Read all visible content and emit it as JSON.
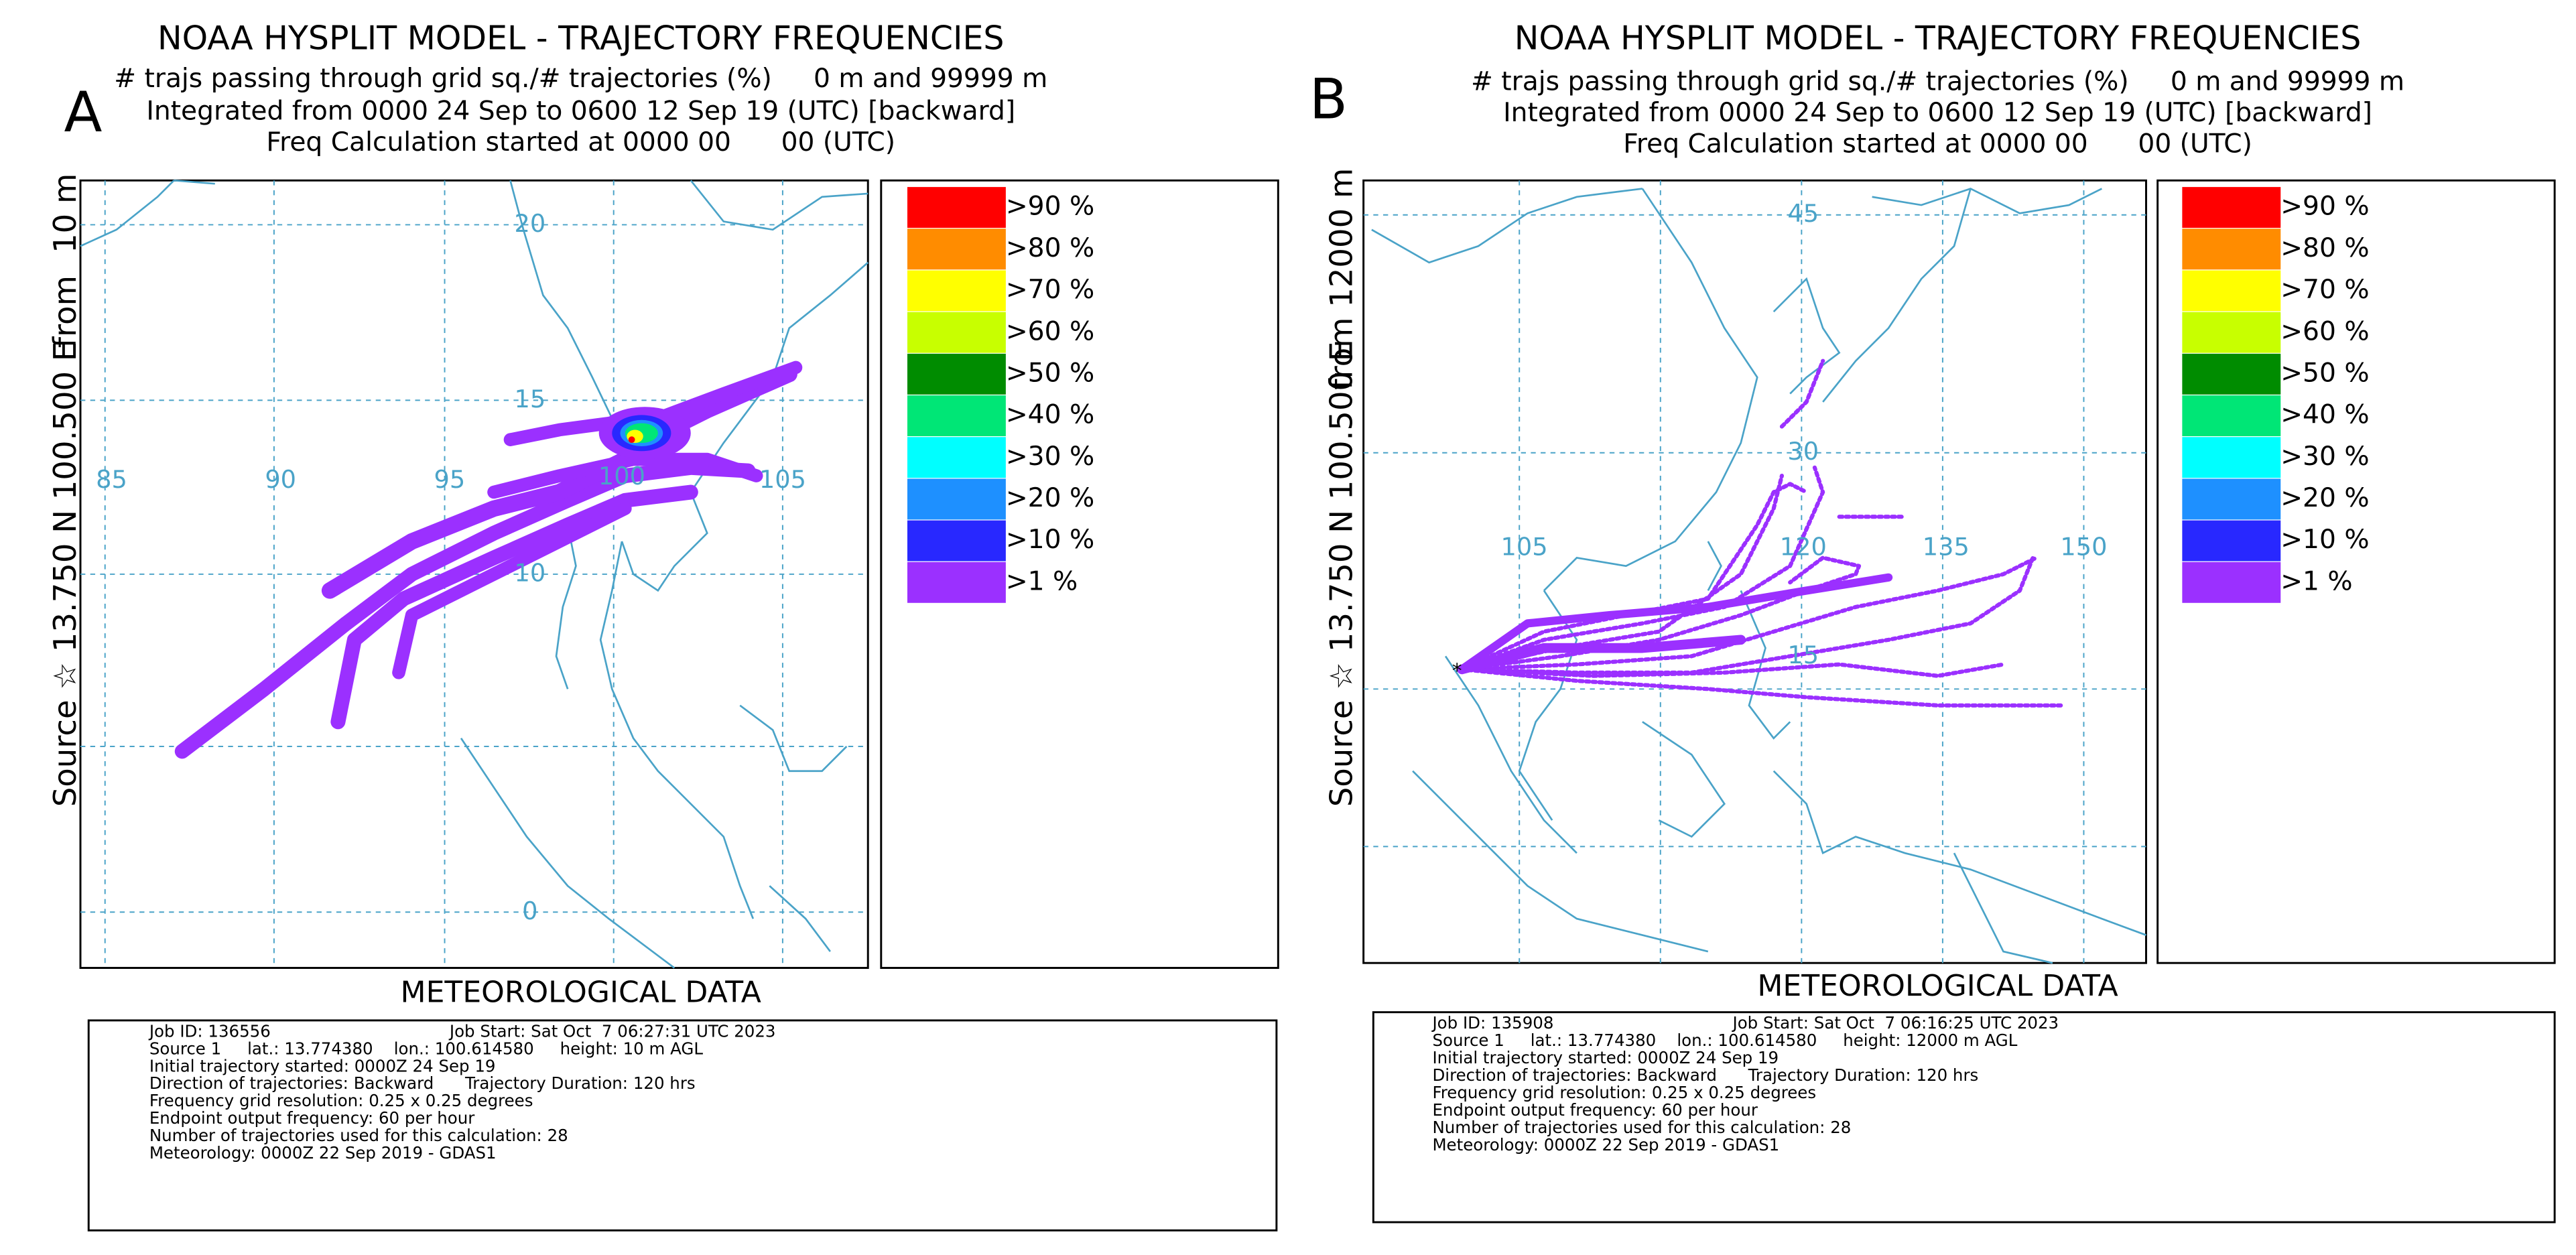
{
  "panels": [
    {
      "letter": "A",
      "title": "NOAA HYSPLIT MODEL - TRAJECTORY FREQUENCIES",
      "subtitle": [
        "# trajs passing through grid sq./# trajectories (%)     0 m and 99999 m",
        "Integrated from 0000 24 Sep to 0600 12 Sep 19 (UTC) [backward]",
        "Freq Calculation started at 0000 00      00 (UTC)"
      ],
      "side_label": [
        "Source ☆ 13.750 N 100.500 E",
        "from",
        "10 m"
      ],
      "lon_labels": [
        "85",
        "90",
        "95",
        "100",
        "105"
      ],
      "lat_labels": [
        "20",
        "15",
        "10",
        "0"
      ],
      "footer_title": "METEOROLOGICAL DATA",
      "footer": [
        [
          "Job ID: 136556",
          "Job Start: Sat Oct  7 06:27:31 UTC 2023"
        ],
        [
          "Source 1     lat.: 13.774380    lon.: 100.614580     height: 10 m AGL"
        ],
        [
          "Initial trajectory started: 0000Z 24 Sep 19"
        ],
        [
          "Direction of trajectories: Backward      Trajectory Duration: 120 hrs"
        ],
        [
          "Frequency grid resolution: 0.25 x 0.25 degrees"
        ],
        [
          "Endpoint output frequency: 60 per hour"
        ],
        [
          "Number of trajectories used for this calculation: 28"
        ],
        [
          "Meteorology: 0000Z 22 Sep 2019 - GDAS1"
        ]
      ]
    },
    {
      "letter": "B",
      "title": "NOAA HYSPLIT MODEL - TRAJECTORY FREQUENCIES",
      "subtitle": [
        "# trajs passing through grid sq./# trajectories (%)     0 m and 99999 m",
        "Integrated from 0000 24 Sep to 0600 12 Sep 19 (UTC) [backward]",
        "Freq Calculation started at 0000 00      00 (UTC)"
      ],
      "side_label": [
        "Source ☆ 13.750 N 100.500 E",
        "from 12000 m"
      ],
      "lon_labels": [
        "105",
        "120",
        "135",
        "150"
      ],
      "lat_labels": [
        "45",
        "30",
        "15"
      ],
      "footer_title": "METEOROLOGICAL DATA",
      "footer": [
        [
          "Job ID: 135908",
          "Job Start: Sat Oct  7 06:16:25 UTC 2023"
        ],
        [
          "Source 1     lat.: 13.774380    lon.: 100.614580     height: 12000 m AGL"
        ],
        [
          "Initial trajectory started: 0000Z 24 Sep 19"
        ],
        [
          "Direction of trajectories: Backward      Trajectory Duration: 120 hrs"
        ],
        [
          "Frequency grid resolution: 0.25 x 0.25 degrees"
        ],
        [
          "Endpoint output frequency: 60 per hour"
        ],
        [
          "Number of trajectories used for this calculation: 28"
        ],
        [
          "Meteorology: 0000Z 22 Sep 2019 - GDAS1"
        ]
      ]
    }
  ],
  "legend": [
    {
      "label": ">90 %",
      "color": "#ff0000"
    },
    {
      "label": ">80 %",
      "color": "#ff8c00"
    },
    {
      "label": ">70 %",
      "color": "#ffff00"
    },
    {
      "label": ">60 %",
      "color": "#c8ff00"
    },
    {
      "label": ">50 %",
      "color": "#008c00"
    },
    {
      "label": ">40 %",
      "color": "#00e676"
    },
    {
      "label": ">30 %",
      "color": "#00ffff"
    },
    {
      "label": ">20 %",
      "color": "#1e90ff"
    },
    {
      "label": ">10 %",
      "color": "#2828ff"
    },
    {
      "label": ">1 %",
      "color": "#9b30ff"
    }
  ]
}
